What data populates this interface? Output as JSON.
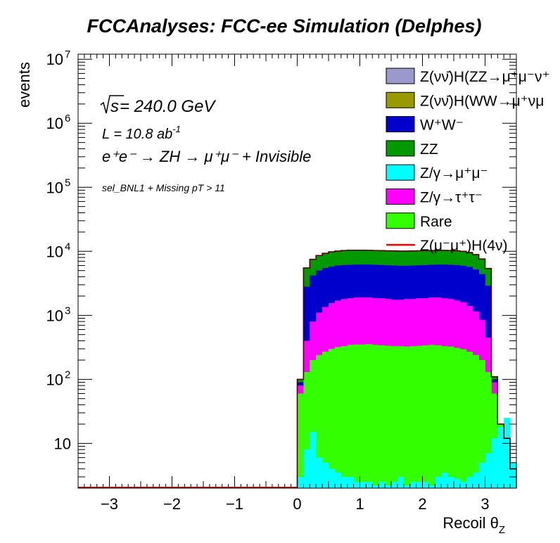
{
  "chart_data": {
    "type": "bar",
    "title": "FCCAnalyses: FCC-ee Simulation (Delphes)",
    "xlabel": "Recoil θ",
    "xlabel_sub": "Z",
    "ylabel": "events",
    "xlim": [
      -3.5,
      3.5
    ],
    "ylim": [
      2,
      12000000
    ],
    "yscale": "log",
    "stacked": true,
    "grid": false,
    "legend_position": "top-right",
    "x_ticks": [
      "−3",
      "−2",
      "−1",
      "0",
      "1",
      "2",
      "3"
    ],
    "y_ticks": [
      {
        "base": "10",
        "exp": ""
      },
      {
        "base": "10",
        "exp": "2"
      },
      {
        "base": "10",
        "exp": "3"
      },
      {
        "base": "10",
        "exp": "4"
      },
      {
        "base": "10",
        "exp": "5"
      },
      {
        "base": "10",
        "exp": "6"
      },
      {
        "base": "10",
        "exp": "7"
      }
    ],
    "annotations": {
      "sqrt": "s",
      "energy": " = 240.0 GeV",
      "lumi": "L = 10.8 ab",
      "lumi_exp": "-1",
      "process": "e⁺e⁻ → ZH → μ⁺μ⁻ + Invisible",
      "selection": "sel_BNL1 + Missing pT > 11"
    },
    "legend": [
      {
        "label": "Z(νν̄)H(ZZ→μ⁺μ⁻ν⁺",
        "color": "#9999cc",
        "style": "box"
      },
      {
        "label": "Z(νν̄)H(WW→μ⁺νμ",
        "color": "#999900",
        "style": "box"
      },
      {
        "label": "W⁺W⁻",
        "color": "#0000cc",
        "style": "box"
      },
      {
        "label": "ZZ",
        "color": "#009900",
        "style": "box"
      },
      {
        "label": "Z/γ→μ⁺μ⁻",
        "color": "#00ffff",
        "style": "box"
      },
      {
        "label": "Z/γ→τ⁺τ⁻",
        "color": "#ff00ff",
        "style": "box"
      },
      {
        "label": "Rare",
        "color": "#33ff00",
        "style": "box"
      },
      {
        "label": "Z(μ⁻μ⁺)H(4ν)",
        "color": "#ff0000",
        "style": "line"
      }
    ],
    "bin_edges_start": 0.0,
    "bin_width": 0.1,
    "stack_order_bottom_to_top": [
      "Z/γ→μ⁺μ⁻",
      "Rare",
      "Z/γ→τ⁺τ⁻",
      "W⁺W⁻",
      "ZZ"
    ],
    "cumulative_stack": [
      {
        "name": "Z/γ→μ⁺μ⁻",
        "color": "#00ffff",
        "values": [
          3,
          8,
          15,
          6,
          5,
          4,
          3.5,
          3,
          3,
          2.5,
          2.5,
          2.5,
          2.2,
          2.5,
          2.2,
          2.5,
          3,
          2.2,
          2.5,
          2.5,
          2.5,
          2.2,
          3,
          3.5,
          3,
          2.8,
          2.5,
          3,
          3.5,
          5,
          7,
          12,
          18,
          25,
          5
        ]
      },
      {
        "name": "Rare",
        "color": "#33ff00",
        "values": [
          60,
          130,
          200,
          240,
          270,
          300,
          320,
          330,
          345,
          350,
          350,
          355,
          345,
          340,
          335,
          330,
          330,
          325,
          330,
          335,
          340,
          345,
          340,
          330,
          325,
          310,
          295,
          270,
          240,
          200,
          130,
          60,
          20,
          12,
          4
        ]
      },
      {
        "name": "Z/γ→τ⁺τ⁻",
        "color": "#ff00ff",
        "values": [
          80,
          400,
          800,
          1100,
          1350,
          1550,
          1700,
          1800,
          1850,
          1900,
          1900,
          1900,
          1850,
          1850,
          1800,
          1750,
          1750,
          1800,
          1800,
          1850,
          1850,
          1900,
          1900,
          1850,
          1800,
          1700,
          1600,
          1400,
          1150,
          850,
          450,
          90,
          20,
          12,
          4
        ]
      },
      {
        "name": "W⁺W⁻",
        "color": "#0000cc",
        "values": [
          90,
          2800,
          4200,
          5000,
          5500,
          5800,
          6000,
          6100,
          6150,
          6200,
          6200,
          6200,
          6150,
          6100,
          6050,
          6000,
          5950,
          5950,
          6000,
          6050,
          6100,
          6150,
          6200,
          6200,
          6150,
          6100,
          5950,
          5700,
          5200,
          4400,
          2900,
          100,
          20,
          12,
          4
        ]
      },
      {
        "name": "ZZ",
        "color": "#009900",
        "values": [
          100,
          5500,
          7500,
          8600,
          9300,
          9800,
          10100,
          10300,
          10400,
          10400,
          10400,
          10350,
          10300,
          10250,
          10200,
          10150,
          10100,
          10100,
          10150,
          10200,
          10250,
          10300,
          10350,
          10350,
          10300,
          10200,
          10000,
          9600,
          8900,
          7600,
          5400,
          110,
          20,
          12,
          4
        ]
      }
    ],
    "signal_line": {
      "name": "Z(μ⁻μ⁺)H(4ν)",
      "color": "#cc0000"
    }
  }
}
